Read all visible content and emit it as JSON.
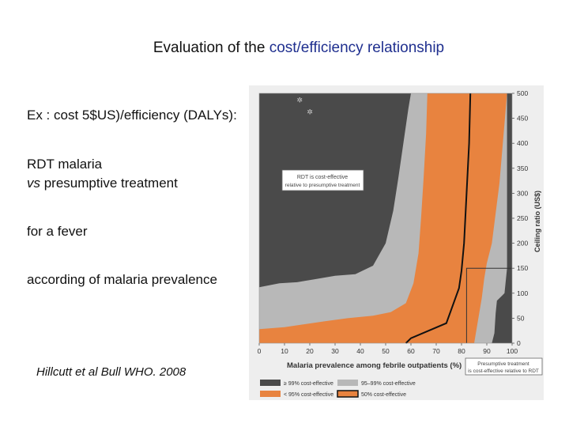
{
  "slide": {
    "title_prefix": "Evaluation of the ",
    "title_accent": "cost/efficiency relationship",
    "accent_color": "#1f2f8f",
    "line1": "Ex : cost 5$US)/efficiency (DALYs):",
    "line2a": "RDT malaria",
    "line2b_italic": "vs",
    "line2b_rest": " presumptive treatment",
    "line3": "for a fever",
    "line4": "according of malaria prevalence",
    "citation": "Hillcutt et al Bull WHO. 2008"
  },
  "chart_data": {
    "type": "area",
    "xlabel": "Malaria prevalence among febrile outpatients (%)",
    "ylabel": "Ceiling ratio (US$)",
    "xlim": [
      0,
      100
    ],
    "ylim": [
      0,
      500
    ],
    "x_ticks": [
      "0",
      "10",
      "20",
      "30",
      "40",
      "50",
      "60",
      "70",
      "80",
      "90",
      "100"
    ],
    "y_ticks": [
      "0",
      "50",
      "100",
      "150",
      "200",
      "250",
      "300",
      "350",
      "400",
      "450",
      "500"
    ],
    "colors": {
      "rdt99": "#4a4a4a",
      "band95_99": "#b8b8b8",
      "below95": "#e8833f",
      "presumptive": "#4a4a4a",
      "fifty": "#111111"
    },
    "annotations": {
      "rdt_box_line1": "RDT is cost-effective",
      "rdt_box_line2": "relative to presumptive treatment",
      "presumptive_box_line1": "Presumptive treatment",
      "presumptive_box_line2": "is cost-effective relative to RDT"
    },
    "legend": [
      {
        "label": "≥ 99% cost-effective",
        "color": "#4a4a4a"
      },
      {
        "label": "95–99% cost-effective",
        "color": "#b8b8b8"
      },
      {
        "label": "< 95% cost-effective",
        "color": "#e8833f"
      },
      {
        "label": "50% cost-effective",
        "color": "#111111"
      }
    ],
    "regions": {
      "dark_boundary": [
        [
          0,
          112
        ],
        [
          8,
          120
        ],
        [
          15,
          122
        ],
        [
          22,
          128
        ],
        [
          30,
          135
        ],
        [
          38,
          138
        ],
        [
          45,
          155
        ],
        [
          50,
          200
        ],
        [
          53,
          265
        ],
        [
          55,
          330
        ],
        [
          57,
          400
        ],
        [
          59,
          470
        ],
        [
          60,
          500
        ]
      ],
      "gray_boundary": [
        [
          0,
          28
        ],
        [
          5,
          30
        ],
        [
          10,
          32
        ],
        [
          18,
          38
        ],
        [
          26,
          44
        ],
        [
          35,
          50
        ],
        [
          45,
          55
        ],
        [
          52,
          62
        ],
        [
          58,
          80
        ],
        [
          61,
          120
        ],
        [
          63,
          180
        ],
        [
          64,
          250
        ],
        [
          65,
          330
        ],
        [
          66,
          420
        ],
        [
          66.5,
          500
        ]
      ],
      "orange_boundary": [
        [
          85,
          0
        ],
        [
          86,
          30
        ],
        [
          87,
          60
        ],
        [
          88,
          90
        ],
        [
          89,
          130
        ],
        [
          90,
          160
        ],
        [
          92,
          200
        ],
        [
          93,
          240
        ],
        [
          94,
          280
        ],
        [
          95,
          320
        ],
        [
          96,
          380
        ],
        [
          97,
          440
        ],
        [
          98,
          500
        ]
      ],
      "presumptive_boundary": [
        [
          92,
          0
        ],
        [
          93,
          20
        ],
        [
          93.5,
          60
        ],
        [
          94,
          85
        ],
        [
          96,
          95
        ],
        [
          97,
          100
        ],
        [
          98,
          150
        ],
        [
          98,
          500
        ]
      ]
    },
    "fifty_percent_line": [
      [
        58,
        0
      ],
      [
        60,
        10
      ],
      [
        74,
        40
      ],
      [
        79,
        110
      ],
      [
        80,
        145
      ],
      [
        81,
        200
      ],
      [
        82,
        300
      ],
      [
        83,
        400
      ],
      [
        83.5,
        500
      ]
    ],
    "reference_point": {
      "x": 82,
      "y": 150
    },
    "stars": [
      [
        16,
        482
      ],
      [
        20,
        458
      ]
    ]
  }
}
